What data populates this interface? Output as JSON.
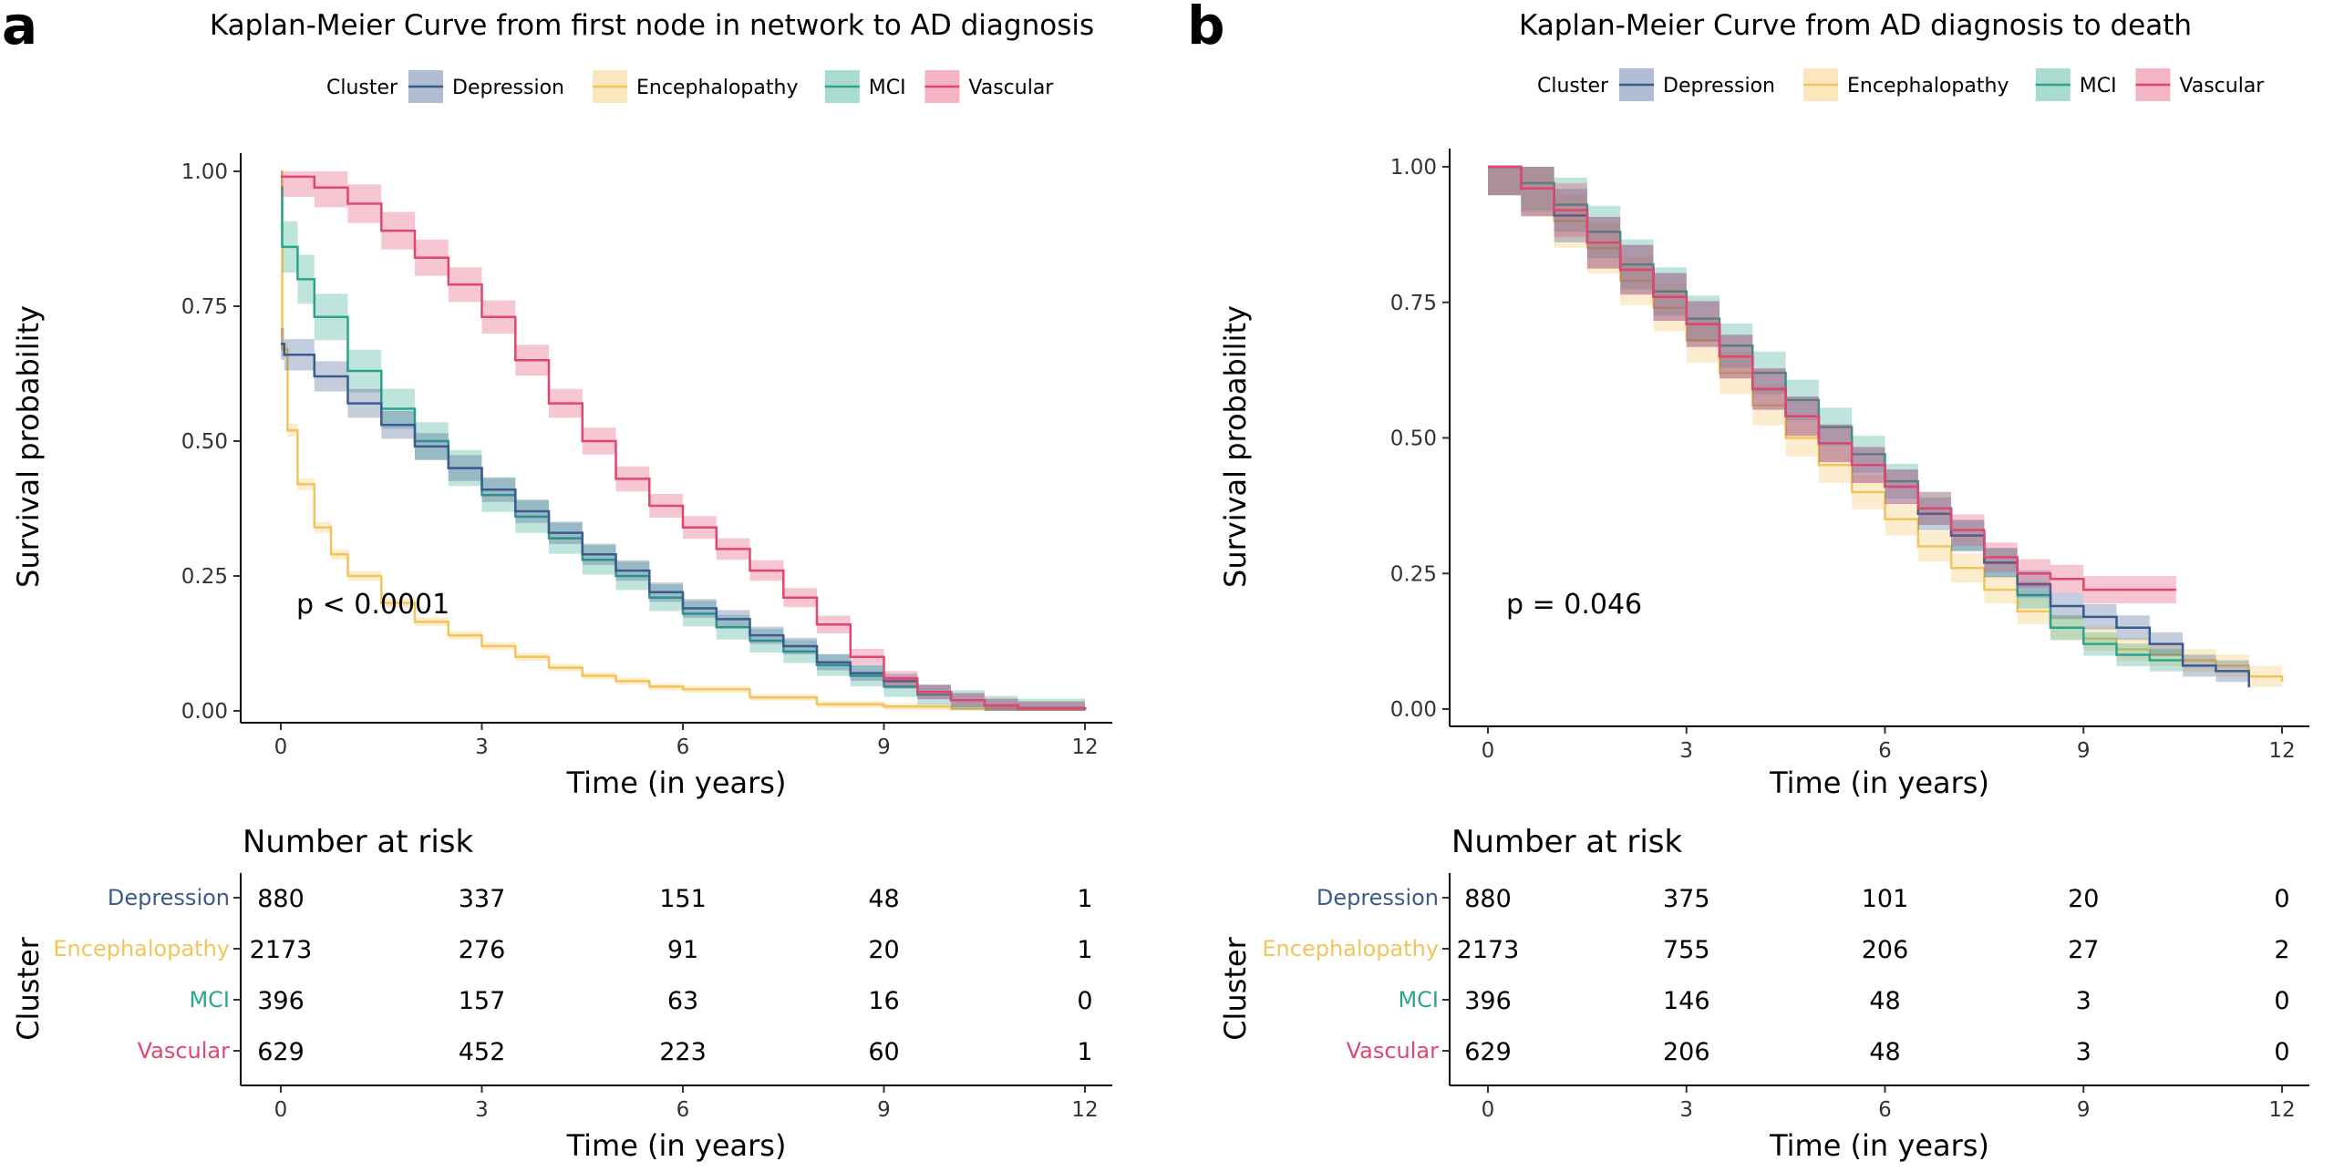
{
  "chart_data": [
    {
      "id": "a",
      "panel_label": "a",
      "type": "line",
      "title": "Kaplan-Meier Curve from first node in network to AD diagnosis",
      "legend_title": "Cluster",
      "xlabel": "Time (in years)",
      "ylabel": "Survival probability",
      "xlim": [
        0,
        12
      ],
      "ylim": [
        0,
        1
      ],
      "xticks": [
        0,
        3,
        6,
        9,
        12
      ],
      "yticks": [
        "0.00",
        "0.25",
        "0.50",
        "0.75",
        "1.00"
      ],
      "p_value": "p < 0.0001",
      "grid": false,
      "series": [
        {
          "name": "Depression",
          "color": "#3b5b8f",
          "x": [
            0,
            0.05,
            0.5,
            1,
            1.5,
            2,
            2.5,
            3,
            3.5,
            4,
            4.5,
            5,
            5.5,
            6,
            6.5,
            7,
            7.5,
            8,
            8.5,
            9,
            9.5,
            10,
            10.5,
            11,
            12
          ],
          "y": [
            0.68,
            0.66,
            0.62,
            0.57,
            0.53,
            0.49,
            0.45,
            0.41,
            0.37,
            0.33,
            0.29,
            0.26,
            0.22,
            0.19,
            0.17,
            0.14,
            0.12,
            0.09,
            0.07,
            0.055,
            0.035,
            0.02,
            0.01,
            0.005,
            0.002
          ]
        },
        {
          "name": "Encephalopathy",
          "color": "#f2c45a",
          "x": [
            0,
            0.02,
            0.1,
            0.25,
            0.5,
            0.75,
            1,
            1.5,
            2,
            2.5,
            3,
            3.5,
            4,
            4.5,
            5,
            5.5,
            6,
            7,
            8,
            9,
            10,
            11,
            12
          ],
          "y": [
            1.0,
            0.67,
            0.52,
            0.42,
            0.34,
            0.29,
            0.25,
            0.2,
            0.165,
            0.14,
            0.12,
            0.1,
            0.08,
            0.065,
            0.055,
            0.045,
            0.04,
            0.025,
            0.012,
            0.008,
            0.004,
            0.002,
            0.001
          ]
        },
        {
          "name": "MCI",
          "color": "#2aa58a",
          "x": [
            0,
            0.02,
            0.25,
            0.5,
            1,
            1.5,
            2,
            2.5,
            3,
            3.5,
            4,
            4.5,
            5,
            5.5,
            6,
            6.5,
            7,
            7.5,
            8,
            8.5,
            9,
            9.5,
            10,
            10.5,
            11,
            12
          ],
          "y": [
            0.97,
            0.86,
            0.8,
            0.73,
            0.63,
            0.56,
            0.5,
            0.45,
            0.4,
            0.36,
            0.32,
            0.28,
            0.25,
            0.21,
            0.18,
            0.155,
            0.13,
            0.11,
            0.085,
            0.065,
            0.045,
            0.03,
            0.02,
            0.01,
            0.005,
            0.002
          ]
        },
        {
          "name": "Vascular",
          "color": "#e0466e",
          "x": [
            0,
            0.5,
            1,
            1.5,
            2,
            2.5,
            3,
            3.5,
            4,
            4.5,
            5,
            5.5,
            6,
            6.5,
            7,
            7.5,
            8,
            8.5,
            9,
            9.5,
            10,
            10.5,
            11,
            12
          ],
          "y": [
            0.99,
            0.97,
            0.94,
            0.89,
            0.84,
            0.79,
            0.73,
            0.65,
            0.57,
            0.5,
            0.43,
            0.38,
            0.34,
            0.3,
            0.26,
            0.21,
            0.16,
            0.1,
            0.06,
            0.035,
            0.02,
            0.01,
            0.005,
            0.002
          ]
        }
      ],
      "risk_table": {
        "title": "Number at risk",
        "ylabel": "Cluster",
        "xlabel": "Time (in years)",
        "times": [
          0,
          3,
          6,
          9,
          12
        ],
        "rows": [
          {
            "name": "Depression",
            "values": [
              880,
              337,
              151,
              48,
              1
            ]
          },
          {
            "name": "Encephalopathy",
            "values": [
              2173,
              276,
              91,
              20,
              1
            ]
          },
          {
            "name": "MCI",
            "values": [
              396,
              157,
              63,
              16,
              0
            ]
          },
          {
            "name": "Vascular",
            "values": [
              629,
              452,
              223,
              60,
              1
            ]
          }
        ]
      }
    },
    {
      "id": "b",
      "panel_label": "b",
      "type": "line",
      "title": "Kaplan-Meier Curve from AD diagnosis to death",
      "legend_title": "Cluster",
      "xlabel": "Time (in years)",
      "ylabel": "Survival probability",
      "xlim": [
        0,
        12
      ],
      "ylim": [
        0,
        1
      ],
      "xticks": [
        0,
        3,
        6,
        9,
        12
      ],
      "yticks": [
        "0.00",
        "0.25",
        "0.50",
        "0.75",
        "1.00"
      ],
      "p_value": "p = 0.046",
      "grid": false,
      "series": [
        {
          "name": "Depression",
          "color": "#3b5b8f",
          "x": [
            0,
            0.5,
            1,
            1.5,
            2,
            2.5,
            3,
            3.5,
            4,
            4.5,
            5,
            5.5,
            6,
            6.5,
            7,
            7.5,
            8,
            8.5,
            9,
            9.5,
            10,
            10.5,
            11,
            11.5
          ],
          "y": [
            1.0,
            0.96,
            0.91,
            0.86,
            0.81,
            0.76,
            0.71,
            0.65,
            0.59,
            0.54,
            0.49,
            0.45,
            0.41,
            0.36,
            0.32,
            0.27,
            0.23,
            0.19,
            0.17,
            0.15,
            0.12,
            0.08,
            0.07,
            0.04
          ]
        },
        {
          "name": "Encephalopathy",
          "color": "#f2c45a",
          "x": [
            0,
            0.5,
            1,
            1.5,
            2,
            2.5,
            3,
            3.5,
            4,
            4.5,
            5,
            5.5,
            6,
            6.5,
            7,
            7.5,
            8,
            8.5,
            9,
            9.5,
            10,
            10.5,
            11,
            11.5,
            12
          ],
          "y": [
            1.0,
            0.96,
            0.9,
            0.85,
            0.79,
            0.74,
            0.68,
            0.62,
            0.56,
            0.5,
            0.45,
            0.4,
            0.35,
            0.3,
            0.26,
            0.22,
            0.18,
            0.15,
            0.13,
            0.11,
            0.1,
            0.09,
            0.08,
            0.06,
            0.05
          ]
        },
        {
          "name": "MCI",
          "color": "#2aa58a",
          "x": [
            0,
            0.5,
            1,
            1.5,
            2,
            2.5,
            3,
            3.5,
            4,
            4.5,
            5,
            5.5,
            6,
            6.5,
            7,
            7.5,
            8,
            8.5,
            9,
            9.5,
            10,
            10.5
          ],
          "y": [
            1.0,
            0.97,
            0.93,
            0.88,
            0.82,
            0.77,
            0.72,
            0.67,
            0.62,
            0.57,
            0.52,
            0.47,
            0.42,
            0.37,
            0.32,
            0.27,
            0.21,
            0.15,
            0.12,
            0.1,
            0.09,
            0.09
          ]
        },
        {
          "name": "Vascular",
          "color": "#e0466e",
          "x": [
            0,
            0.5,
            1,
            1.5,
            2,
            2.5,
            3,
            3.5,
            4,
            4.5,
            5,
            5.5,
            6,
            6.5,
            7,
            7.5,
            8,
            8.5,
            9,
            9.5,
            10,
            10.4
          ],
          "y": [
            1.0,
            0.96,
            0.92,
            0.86,
            0.81,
            0.76,
            0.71,
            0.65,
            0.59,
            0.54,
            0.49,
            0.45,
            0.41,
            0.37,
            0.33,
            0.28,
            0.25,
            0.24,
            0.22,
            0.22,
            0.22,
            0.22
          ]
        }
      ],
      "risk_table": {
        "title": "Number at risk",
        "ylabel": "Cluster",
        "xlabel": "Time (in years)",
        "times": [
          0,
          3,
          6,
          9,
          12
        ],
        "rows": [
          {
            "name": "Depression",
            "values": [
              880,
              375,
              101,
              20,
              0
            ]
          },
          {
            "name": "Encephalopathy",
            "values": [
              2173,
              755,
              206,
              27,
              2
            ]
          },
          {
            "name": "MCI",
            "values": [
              396,
              146,
              48,
              3,
              0
            ]
          },
          {
            "name": "Vascular",
            "values": [
              629,
              206,
              48,
              3,
              0
            ]
          }
        ]
      }
    }
  ]
}
